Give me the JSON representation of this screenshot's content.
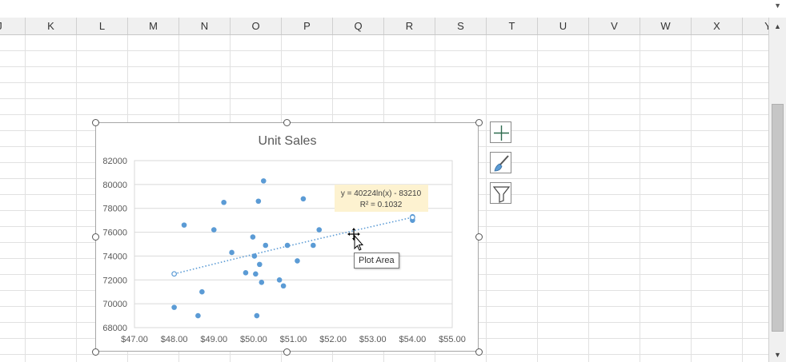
{
  "spreadsheet": {
    "columns": [
      "J",
      "K",
      "L",
      "M",
      "N",
      "O",
      "P",
      "Q",
      "R",
      "S",
      "T",
      "U",
      "V",
      "W",
      "X",
      "Y"
    ]
  },
  "tooltip": {
    "text": "Plot Area"
  },
  "side_buttons": [
    {
      "name": "chart-elements-button",
      "icon": "plus-icon"
    },
    {
      "name": "chart-styles-button",
      "icon": "paintbrush-icon"
    },
    {
      "name": "chart-filters-button",
      "icon": "funnel-icon"
    }
  ],
  "chart_data": {
    "type": "scatter",
    "title": "Unit Sales",
    "xlabel": "",
    "ylabel": "",
    "xlim": [
      47,
      55
    ],
    "ylim": [
      68000,
      82000
    ],
    "x_ticks": [
      "$47.00",
      "$48.00",
      "$49.00",
      "$50.00",
      "$51.00",
      "$52.00",
      "$53.00",
      "$54.00",
      "$55.00"
    ],
    "y_ticks": [
      "68000",
      "70000",
      "72000",
      "74000",
      "76000",
      "78000",
      "80000",
      "82000"
    ],
    "grid": "horizontal",
    "legend": "none",
    "marker_color": "#5b9bd5",
    "trendline_color": "#5b9bd5",
    "series": [
      {
        "x": [
          48.0,
          48.25,
          48.6,
          48.7,
          49.0,
          49.25,
          49.45,
          49.8,
          49.98,
          50.02,
          50.05,
          50.08,
          50.12,
          50.15,
          50.2,
          50.25,
          50.3,
          50.65,
          50.75,
          50.85,
          51.1,
          51.25,
          51.5,
          51.65,
          54.0,
          54.0
        ],
        "y": [
          69700,
          76600,
          69000,
          71000,
          76200,
          78500,
          74300,
          72600,
          75600,
          74000,
          72500,
          69000,
          78600,
          73300,
          71800,
          80300,
          74900,
          72000,
          71500,
          74900,
          73600,
          78800,
          74900,
          76200,
          77000,
          77300
        ]
      }
    ],
    "trendline": {
      "kind": "logarithmic",
      "equation": "y = 40224ln(x) - 83210",
      "r_squared": "R² = 0.1032",
      "a": 40224,
      "b": -83210,
      "x_range": [
        48,
        54
      ]
    }
  }
}
